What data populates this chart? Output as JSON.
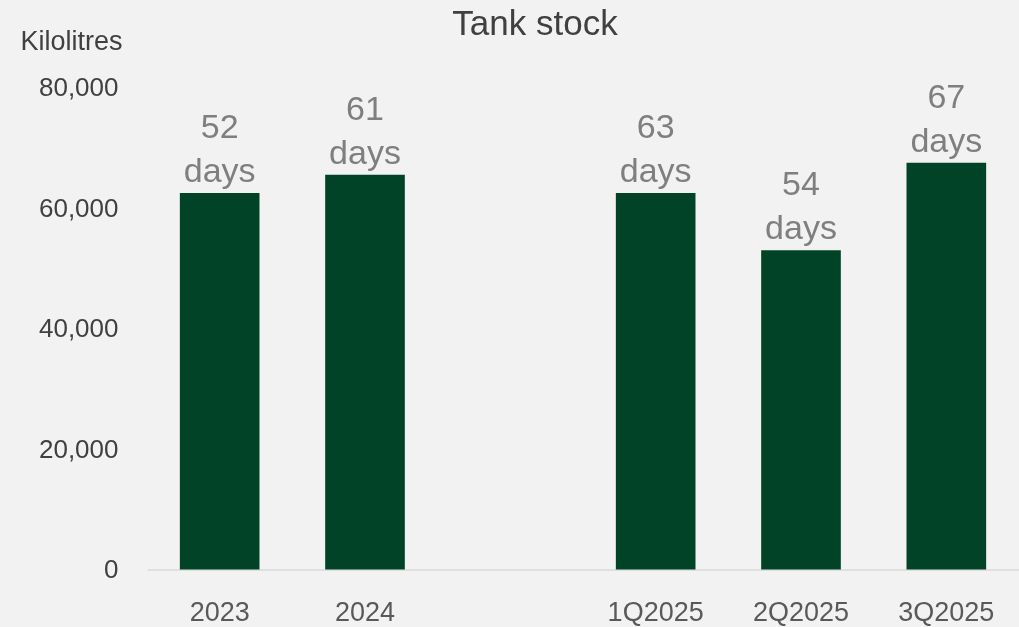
{
  "chart_data": {
    "type": "bar",
    "title": "Tank stock",
    "ylabel": "Kilolitres",
    "categories": [
      "2023",
      "2024",
      null,
      "1Q2025",
      "2Q2025",
      "3Q2025"
    ],
    "values": [
      62500,
      65500,
      null,
      62500,
      53000,
      67500
    ],
    "color": "#014326",
    "ylim": [
      0,
      80000
    ],
    "yticks": [
      0,
      {
        "value": 20000,
        "label": "20,000"
      },
      {
        "value": 40000,
        "label": "40,000"
      },
      {
        "value": 60000,
        "label": "60,000"
      },
      {
        "value": 80000,
        "label": "80,000"
      }
    ],
    "annotations": [
      {
        "text": "52 days",
        "x": "2023",
        "y": 62500
      },
      {
        "text": "61 days",
        "x": "2024",
        "y": 65500
      },
      {
        "text": "63 days",
        "x": "1Q2025",
        "y": 62500
      },
      {
        "text": "54 days",
        "x": "2Q2025",
        "y": 53000
      },
      {
        "text": "67 days",
        "x": "3Q2025",
        "y": 67500
      }
    ]
  }
}
